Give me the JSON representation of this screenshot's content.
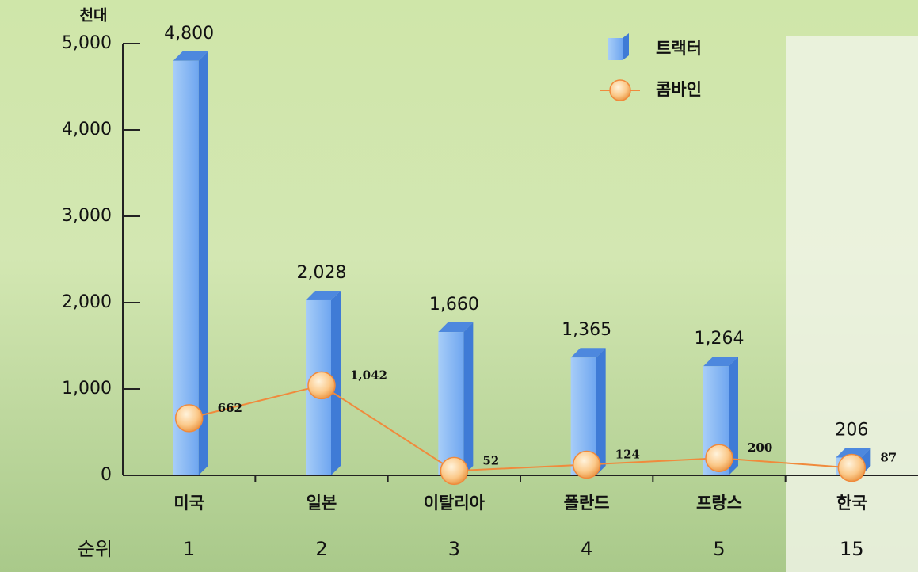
{
  "chart_data": {
    "type": "bar_line",
    "y_unit_label": "천대",
    "rank_label": "순위",
    "categories": [
      "미국",
      "일본",
      "이탈리아",
      "폴란드",
      "프랑스",
      "한국"
    ],
    "ranks": [
      1,
      2,
      3,
      4,
      5,
      15
    ],
    "series": [
      {
        "name": "트랙터",
        "type": "bar",
        "color": "#6fa6f0",
        "values": [
          4800,
          2028,
          1660,
          1365,
          1264,
          206
        ],
        "value_labels": [
          "4,800",
          "2,028",
          "1,660",
          "1,365",
          "1,264",
          "206"
        ]
      },
      {
        "name": "콤바인",
        "type": "line",
        "color": "#f08a3c",
        "values": [
          662,
          1042,
          52,
          124,
          200,
          87
        ],
        "value_labels": [
          "662",
          "1,042",
          "52",
          "124",
          "200",
          "87"
        ]
      }
    ],
    "ylim": [
      0,
      5000
    ],
    "yticks": [
      0,
      {
        "value": 1000,
        "label": "1,000"
      },
      {
        "value": 2000,
        "label": "2,000"
      },
      {
        "value": 3000,
        "label": "3,000"
      },
      {
        "value": 4000,
        "label": "4,000"
      },
      {
        "value": 5000,
        "label": "5,000"
      }
    ],
    "legend": "top-right"
  }
}
